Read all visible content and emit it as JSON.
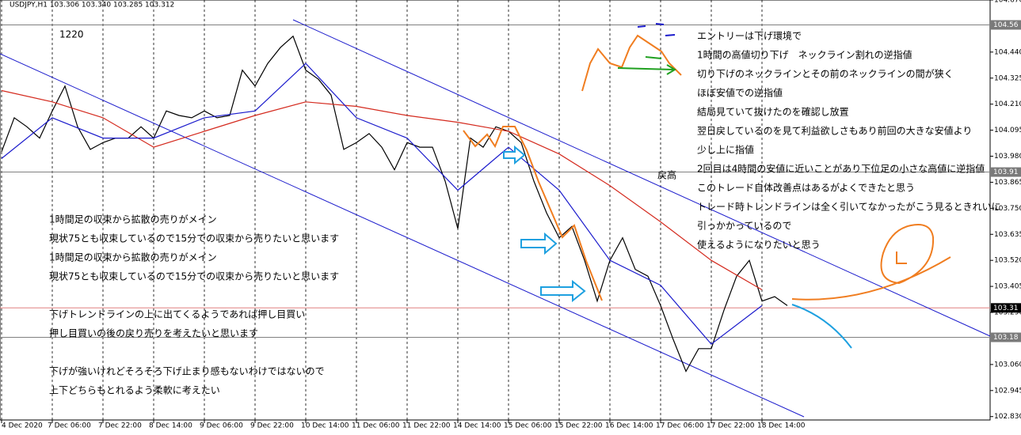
{
  "chart_data": {
    "type": "line",
    "title": "USDJPY,H1  103.306 103.340 103.285 103.312",
    "label_1220": "1220",
    "label_high": "戻高",
    "xlim": [
      -0.5,
      249.5
    ],
    "ylim": [
      102.815,
      104.67
    ],
    "xticks": [
      {
        "value": 0,
        "label": "4 Dec 2020"
      },
      {
        "value": 16,
        "label": "7 Dec 06:00"
      },
      {
        "value": 32,
        "label": "7 Dec 22:00"
      },
      {
        "value": 48,
        "label": "8 Dec 14:00"
      },
      {
        "value": 64,
        "label": "9 Dec 06:00"
      },
      {
        "value": 80,
        "label": "9 Dec 22:00"
      },
      {
        "value": 96,
        "label": "10 Dec 14:00"
      },
      {
        "value": 112,
        "label": "11 Dec 06:00"
      },
      {
        "value": 128,
        "label": "11 Dec 22:00"
      },
      {
        "value": 144,
        "label": "14 Dec 14:00"
      },
      {
        "value": 160,
        "label": "15 Dec 06:00"
      },
      {
        "value": 176,
        "label": "15 Dec 22:00"
      },
      {
        "value": 192,
        "label": "16 Dec 14:00"
      },
      {
        "value": 208,
        "label": "17 Dec 06:00"
      },
      {
        "value": 224,
        "label": "17 Dec 22:00"
      },
      {
        "value": 240,
        "label": "18 Dec 14:00"
      }
    ],
    "yticks": [
      {
        "value": 104.67,
        "label": "104.670"
      },
      {
        "value": 104.44,
        "label": "104.440"
      },
      {
        "value": 104.325,
        "label": "104.325"
      },
      {
        "value": 104.21,
        "label": "104.210"
      },
      {
        "value": 104.095,
        "label": "104.095"
      },
      {
        "value": 103.98,
        "label": "103.980"
      },
      {
        "value": 103.865,
        "label": "103.865"
      },
      {
        "value": 103.75,
        "label": "103.750"
      },
      {
        "value": 103.635,
        "label": "103.635"
      },
      {
        "value": 103.52,
        "label": "103.520"
      },
      {
        "value": 103.405,
        "label": "103.405"
      },
      {
        "value": 103.29,
        "label": "103.290"
      },
      {
        "value": 103.06,
        "label": "103.060"
      },
      {
        "value": 102.945,
        "label": "102.945"
      },
      {
        "value": 102.83,
        "label": "102.830"
      }
    ],
    "levels": [
      104.56,
      103.91,
      103.31,
      103.18
    ],
    "level_colors": [
      "#808080",
      "#808080",
      "#e08080",
      "#808080"
    ],
    "level_label_colors": [
      "#7a7a7a",
      "#7a7a7a",
      "#000000",
      "#7a7a7a"
    ],
    "series": [
      {
        "color": "#000000",
        "x": [
          0,
          4,
          8,
          12,
          16,
          20,
          24,
          28,
          32,
          36,
          40,
          44,
          48,
          52,
          56,
          60,
          64,
          68,
          72,
          76,
          80,
          84,
          88,
          92,
          96,
          100,
          104,
          108,
          112,
          116,
          120,
          124,
          128,
          132,
          136,
          140,
          144,
          148,
          152,
          156,
          160,
          164,
          168,
          172,
          176,
          180,
          184,
          188,
          192,
          196,
          200,
          204,
          208,
          212,
          216,
          220,
          224,
          228,
          232,
          236,
          240,
          244,
          248
        ],
        "values": [
          104.0,
          104.15,
          104.11,
          104.06,
          104.18,
          104.29,
          104.11,
          104.01,
          104.04,
          104.06,
          104.06,
          104.11,
          104.06,
          104.18,
          104.16,
          104.15,
          104.18,
          104.15,
          104.16,
          104.36,
          104.29,
          104.39,
          104.46,
          104.51,
          104.36,
          104.32,
          104.25,
          104.01,
          104.04,
          104.08,
          104.02,
          103.92,
          104.04,
          104.02,
          104.02,
          103.87,
          103.66,
          104.06,
          104.02,
          104.11,
          104.09,
          104.04,
          103.87,
          103.73,
          103.62,
          103.67,
          103.52,
          103.34,
          103.52,
          103.62,
          103.48,
          103.45,
          103.32,
          103.17,
          103.03,
          103.13,
          103.13,
          103.3,
          103.45,
          103.52,
          103.34,
          103.36,
          103.32
        ]
      },
      {
        "color": "#d42a1e",
        "x": [
          0,
          16,
          32,
          48,
          64,
          80,
          96,
          112,
          128,
          144,
          160,
          176,
          192,
          208,
          224,
          240
        ],
        "values": [
          104.27,
          104.22,
          104.15,
          104.02,
          104.09,
          104.16,
          104.22,
          104.2,
          104.16,
          104.13,
          104.09,
          103.99,
          103.85,
          103.69,
          103.52,
          103.39
        ]
      },
      {
        "color": "#1a1acc",
        "x": [
          0,
          16,
          32,
          48,
          64,
          80,
          96,
          112,
          128,
          144,
          160,
          176,
          192,
          208,
          224,
          240
        ],
        "values": [
          103.97,
          104.15,
          104.06,
          104.06,
          104.15,
          104.18,
          104.39,
          104.15,
          104.06,
          103.83,
          104.02,
          103.83,
          103.52,
          103.41,
          103.15,
          103.32
        ]
      }
    ],
    "notes_right": [
      "エントリーは下げ環境で",
      "1時間の高値切り下げ　ネックライン割れの逆指値",
      "切り下げのネックラインとその前のネックラインの間が狭く",
      "ほぼ安値での逆指値",
      "結局見ていて抜けたのを確認し放置",
      "翌日戻しているのを見て利益欲しさもあり前回の大きな安値より",
      "少し上に指値",
      "2回目は4時間の安値に近いことがあり下位足の小さな高値に逆指値",
      "このトレード自体改善点はあるがよくできたと思う",
      "トレード時トレンドラインは全く引いてなかったがこう見るときれいに",
      "引っかかっているので",
      "使えるようになりたいと思う"
    ],
    "notes_left": [
      "1時間足の収束から拡散の売りがメイン",
      "現状75とも収束しているので15分での収束から売りたいと思います",
      "1時間足の収束から拡散の売りがメイン",
      "現状75とも収束しているので15分での収束から売りたいと思います",
      "下げトレンドラインの上に出てくるようであれば押し目買い",
      "押し目買いの後の戻り売りを考えたいと思います",
      "下げが強いけれどそろそろ下げ止まり感もないわけではないので",
      "上下どちらもとれるよう柔軟に考えたい"
    ]
  }
}
